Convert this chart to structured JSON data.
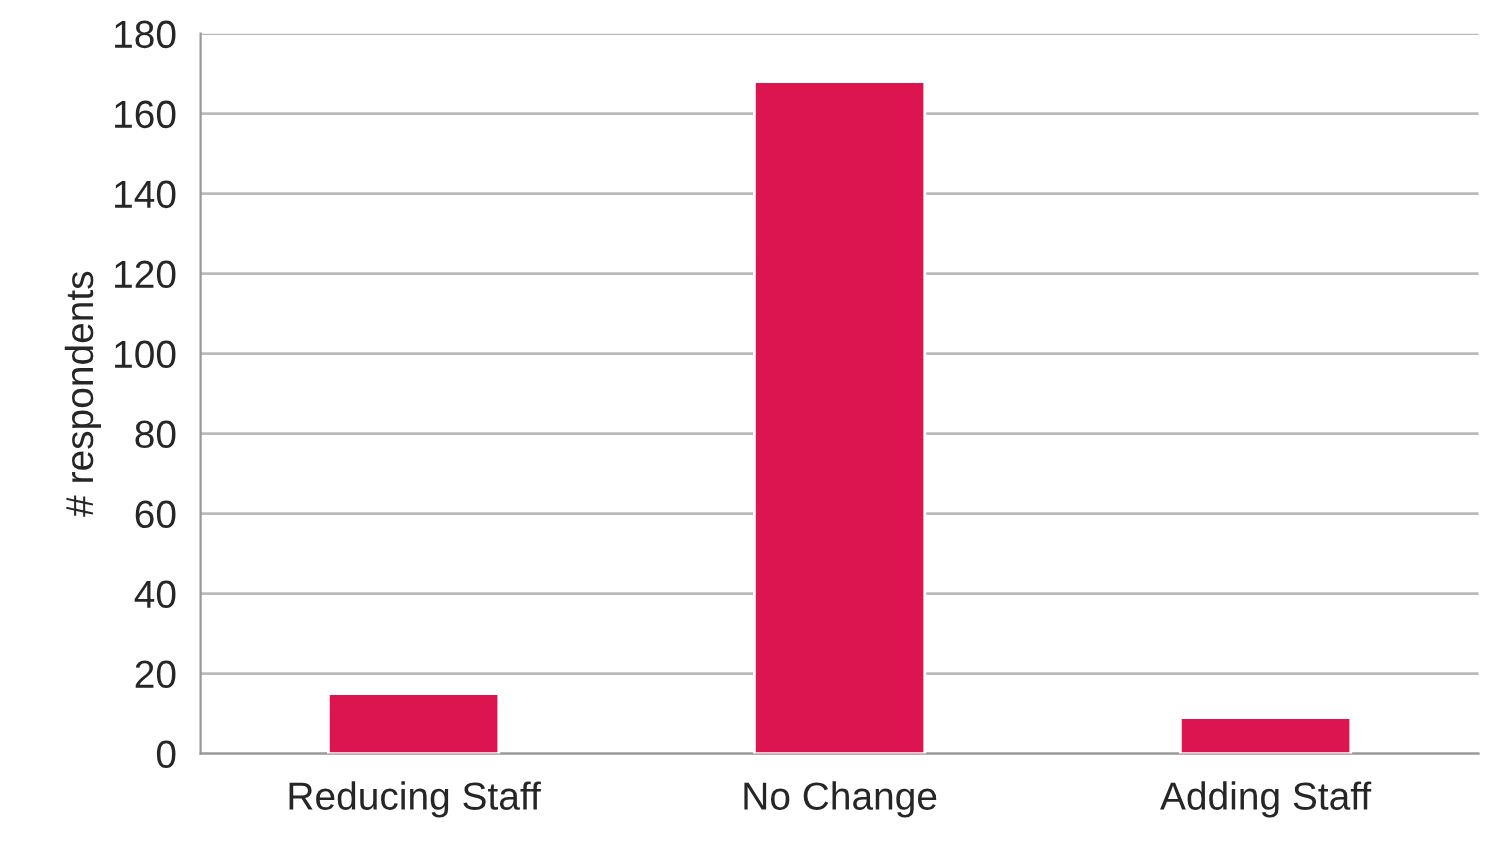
{
  "chart_data": {
    "type": "bar",
    "ylabel": "# respondents",
    "categories": [
      "Reducing Staff",
      "No Change",
      "Adding Staff"
    ],
    "values": [
      15,
      168,
      9
    ],
    "color": "#dc1551",
    "ylim": [
      0,
      180
    ],
    "yticks": [
      0,
      20,
      40,
      60,
      80,
      100,
      120,
      140,
      160,
      180
    ],
    "grid": "y",
    "legend": false
  }
}
